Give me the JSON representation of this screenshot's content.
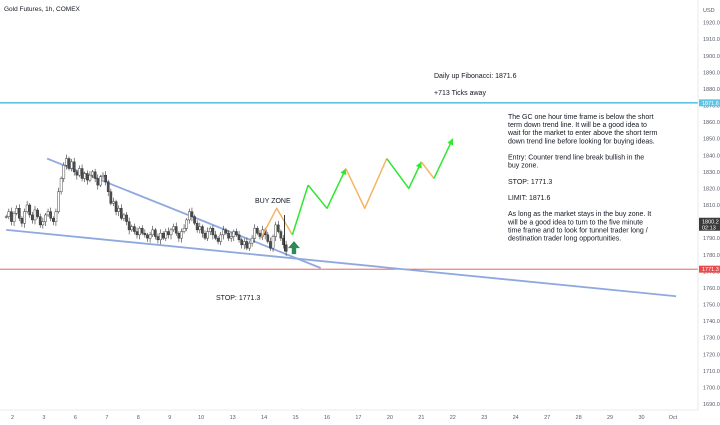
{
  "chart_data": {
    "type": "candlestick",
    "symbol_title": "Gold Futures, 1h, COMEX",
    "currency": "USD",
    "colors": {
      "up": "#26a69a",
      "down": "#4d4d4d",
      "candle": "#333333",
      "horizontal_line": "#5ec4e6",
      "stop_line": "#e84c4c",
      "trend_line": "#8fa9df",
      "green_arrow": "#2ee82e",
      "orange_arrow": "#f5b461",
      "small_arrow": "#2f8a57",
      "price_badge": "#3a3a3a",
      "fib_badge": "#5ec4e6",
      "stop_badge": "#e84c4c"
    },
    "y_axis": {
      "min": 1690,
      "max": 1930,
      "ticks": [
        1920.0,
        1910.0,
        1900.0,
        1890.0,
        1880.0,
        1870.0,
        1860.0,
        1850.0,
        1840.0,
        1830.0,
        1820.0,
        1810.0,
        1800.0,
        1790.0,
        1780.0,
        1770.0,
        1760.0,
        1750.0,
        1740.0,
        1730.0,
        1720.0,
        1710.0,
        1700.0,
        1690.0
      ],
      "tick_labels": [
        "1920.0",
        "1910.0",
        "1900.0",
        "1890.0",
        "1880.0",
        "1870.0",
        "1860.0",
        "1850.0",
        "1840.0",
        "1830.0",
        "1820.0",
        "1810.0",
        "1800.0",
        "1790.0",
        "1780.0",
        "1770.0",
        "1760.0",
        "1750.0",
        "1740.0",
        "1730.0",
        "1720.0",
        "1710.0",
        "1700.0",
        "1690.0"
      ],
      "price_badge_value": 1800.2,
      "price_badge_label": "1800.2",
      "price_badge_sub": "02:13",
      "fib_badge_value": 1871.6,
      "fib_badge_label": "1871.6",
      "stop_badge_value": 1771.3,
      "stop_badge_label": "1771.3"
    },
    "x_axis": {
      "ticks": [
        "2",
        "3",
        "6",
        "7",
        "8",
        "9",
        "10",
        "13",
        "14",
        "15",
        "16",
        "17",
        "20",
        "21",
        "22",
        "23",
        "24",
        "27",
        "28",
        "29",
        "30",
        "Oct"
      ],
      "tick_index": [
        0,
        1,
        2,
        3,
        4,
        5,
        6,
        7,
        8,
        9,
        10,
        11,
        12,
        13,
        14,
        15,
        16,
        17,
        18,
        19,
        20,
        21
      ]
    },
    "candles": {
      "start_day_index": -0.2,
      "step_days": 0.04,
      "close": [
        1803,
        1806,
        1800,
        1805,
        1808,
        1802,
        1799,
        1806,
        1810,
        1804,
        1801,
        1807,
        1803,
        1798,
        1800,
        1804,
        1806,
        1802,
        1800,
        1806,
        1818,
        1826,
        1834,
        1838,
        1832,
        1836,
        1830,
        1828,
        1832,
        1826,
        1829,
        1825,
        1828,
        1830,
        1826,
        1822,
        1827,
        1828,
        1824,
        1818,
        1811,
        1812,
        1806,
        1808,
        1802,
        1804,
        1800,
        1795,
        1797,
        1794,
        1792,
        1796,
        1793,
        1792,
        1790,
        1792,
        1795,
        1791,
        1789,
        1793,
        1790,
        1794,
        1792,
        1795,
        1797,
        1793,
        1790,
        1794,
        1796,
        1801,
        1806,
        1803,
        1799,
        1795,
        1797,
        1793,
        1790,
        1794,
        1796,
        1792,
        1790,
        1788,
        1792,
        1795,
        1793,
        1790,
        1791,
        1794,
        1792,
        1789,
        1786,
        1788,
        1784,
        1787,
        1790,
        1796,
        1793,
        1791,
        1795,
        1792,
        1788,
        1784,
        1791,
        1798,
        1794,
        1790,
        1786,
        1782
      ]
    },
    "horizontal_lines": [
      {
        "label": "Daily up Fibonacci",
        "value": 1871.6
      },
      {
        "label": "STOP",
        "value": 1771.3
      }
    ],
    "trend_lines": [
      {
        "from": [
          1.1,
          1838
        ],
        "to": [
          9.8,
          1772
        ]
      },
      {
        "from": [
          -0.2,
          1795
        ],
        "to": [
          21.1,
          1755
        ]
      }
    ],
    "path_arrows": [
      {
        "color_key": "orange_arrow",
        "points": [
          [
            7.9,
            1790
          ],
          [
            8.4,
            1808
          ],
          [
            8.9,
            1792
          ]
        ]
      },
      {
        "color_key": "green_arrow",
        "points": [
          [
            8.9,
            1792
          ],
          [
            9.4,
            1822
          ]
        ]
      },
      {
        "color_key": "green_arrow",
        "points": [
          [
            9.4,
            1822
          ],
          [
            10.0,
            1808
          ],
          [
            10.6,
            1832
          ]
        ],
        "head": true
      },
      {
        "color_key": "orange_arrow",
        "points": [
          [
            10.6,
            1832
          ],
          [
            11.2,
            1808
          ],
          [
            11.9,
            1838
          ]
        ]
      },
      {
        "color_key": "green_arrow",
        "points": [
          [
            11.9,
            1838
          ],
          [
            12.6,
            1820
          ],
          [
            13.0,
            1836
          ]
        ],
        "head": true
      },
      {
        "color_key": "orange_arrow",
        "points": [
          [
            13.0,
            1836
          ],
          [
            13.4,
            1826
          ]
        ]
      },
      {
        "color_key": "green_arrow",
        "points": [
          [
            13.4,
            1826
          ],
          [
            14.0,
            1850
          ]
        ],
        "head": true
      }
    ],
    "annotations": {
      "fib_title": "Daily up Fibonacci: 1871.6",
      "ticks_away": "+713 Ticks away",
      "buy_zone": "BUY ZONE",
      "stop_label": "STOP: 1771.3",
      "commentary": [
        "The GC one hour time frame is below the short",
        "term down trend line. It will be a good idea to",
        "wait for the market to enter above the short term",
        "down trend line before looking for buying ideas.",
        "",
        "Entry: Counter trend line break bullish in the",
        "buy zone.",
        "",
        "STOP: 1771.3",
        "",
        "LIMIT: 1871.6",
        "",
        "As long as the market stays in the buy zone. It",
        "will be a good idea to turn to the five minute",
        "time frame and to look for tunnel trader long /",
        "destination trader long opportunities."
      ]
    }
  }
}
